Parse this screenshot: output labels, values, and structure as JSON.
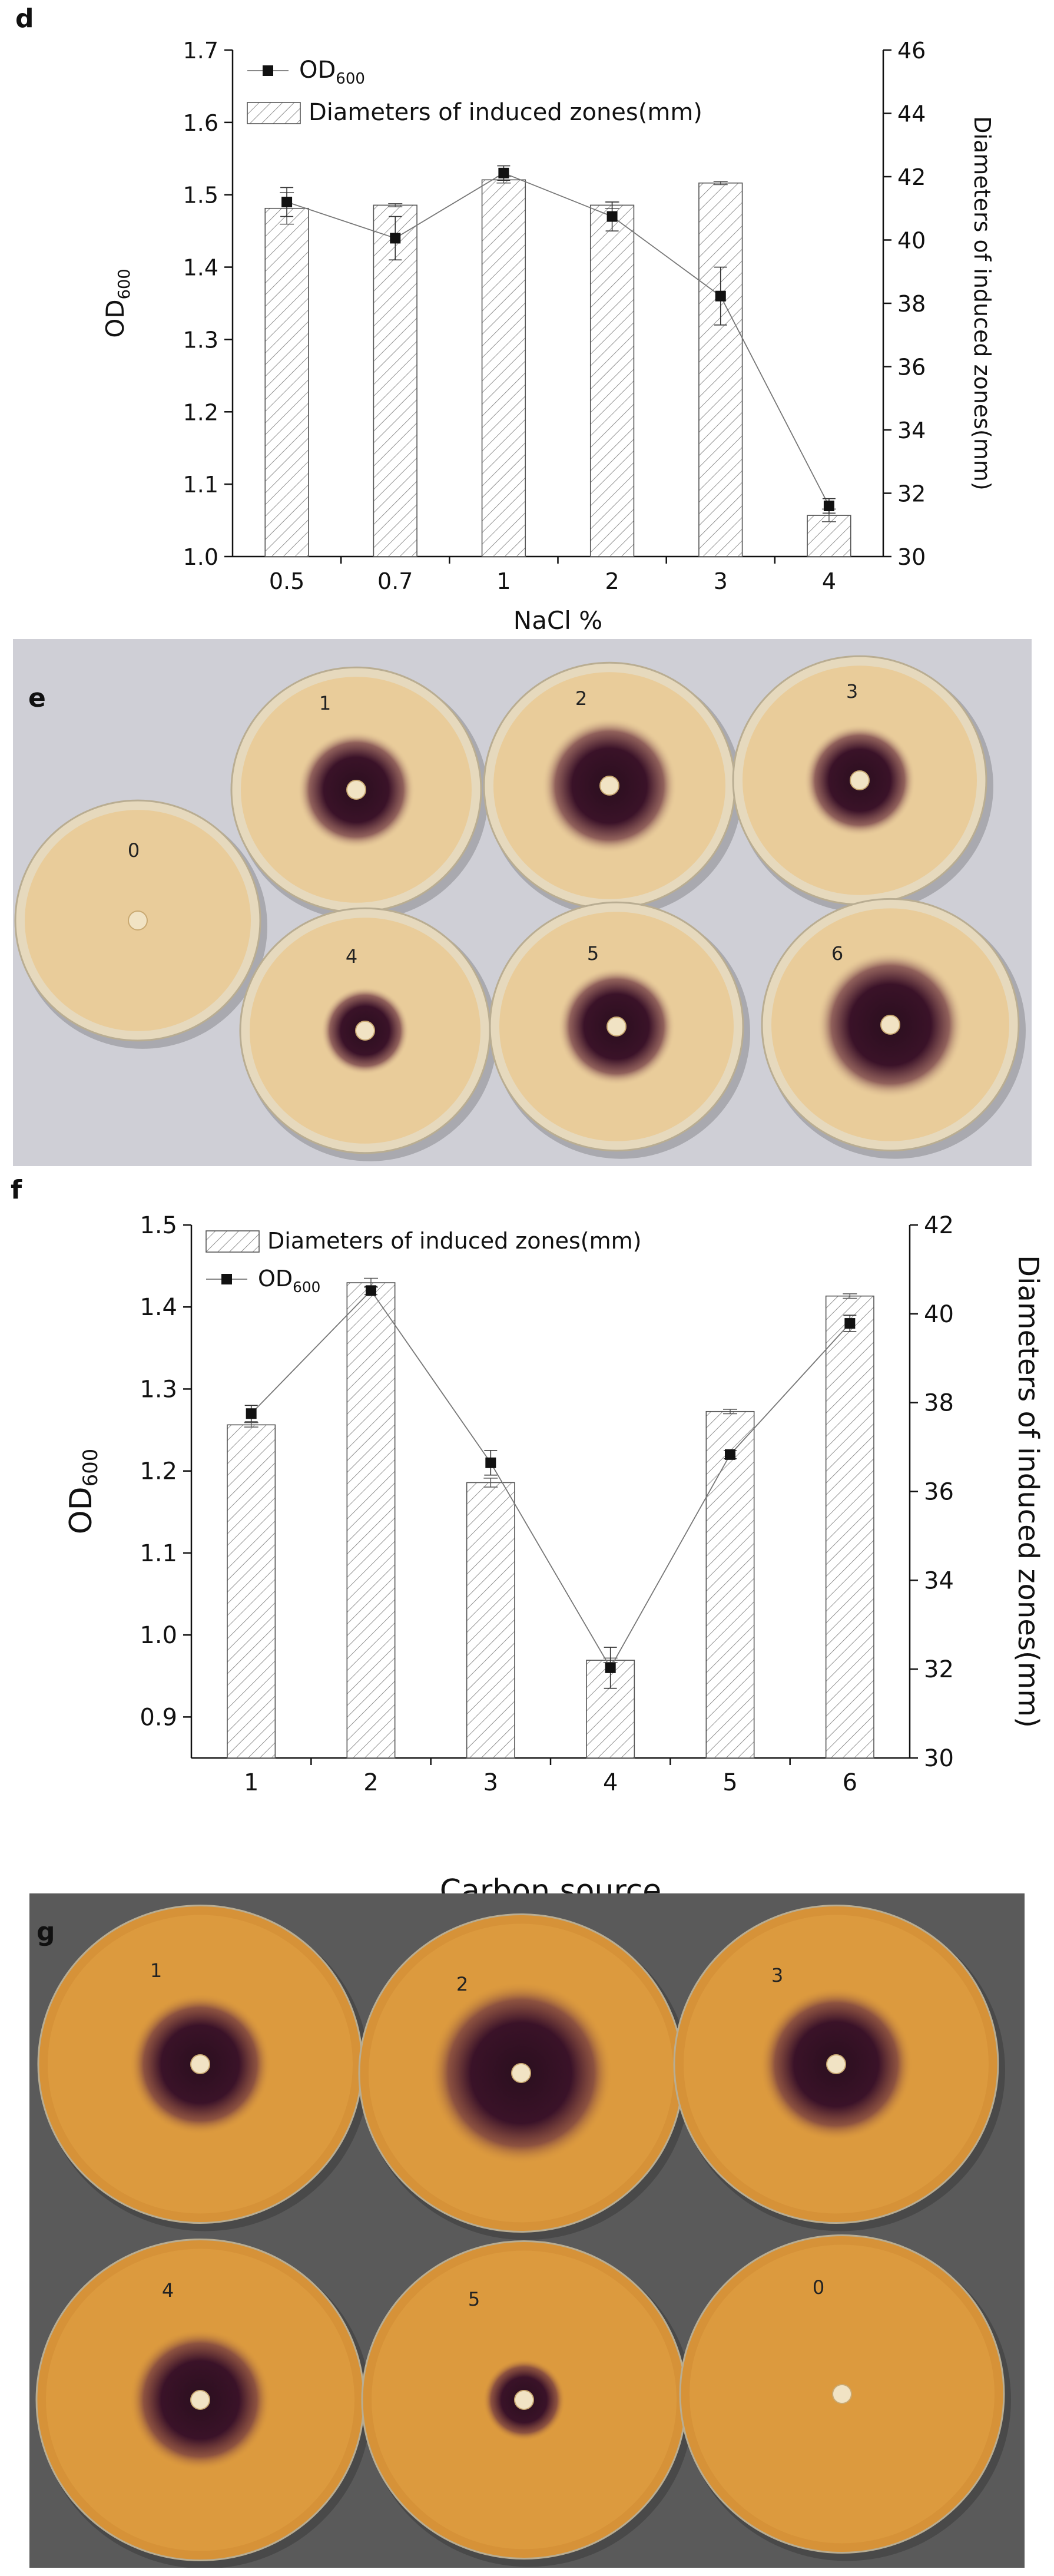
{
  "panels": {
    "d": "d",
    "e": "e",
    "f": "f",
    "g": "g"
  },
  "chart_data": [
    {
      "type": "bar",
      "panel": "d",
      "categories": [
        "0.5",
        "0.7",
        "1",
        "2",
        "3",
        "4"
      ],
      "xlabel": "NaCl %",
      "ylabel": "OD600",
      "y2label": "Diameters of induced zones(mm)",
      "ylim": [
        1.0,
        1.7
      ],
      "y2lim": [
        30,
        46
      ],
      "yticks": [
        "1.0",
        "1.1",
        "1.2",
        "1.3",
        "1.4",
        "1.5",
        "1.6",
        "1.7"
      ],
      "y2ticks": [
        "30",
        "32",
        "34",
        "36",
        "38",
        "40",
        "42",
        "44",
        "46"
      ],
      "legend": {
        "line_main": "OD",
        "line_sub": "600",
        "bar": "Diameters of induced zones(mm)",
        "placement": "top-left"
      },
      "series": [
        {
          "name": "Diameters of induced zones(mm)",
          "kind": "bar",
          "axis": "right",
          "values": [
            41.0,
            41.1,
            41.9,
            41.1,
            41.8,
            31.3
          ],
          "errors": [
            0.5,
            0.05,
            0.1,
            0.1,
            0.05,
            0.2
          ]
        },
        {
          "name": "OD600",
          "kind": "line",
          "axis": "left",
          "values": [
            1.49,
            1.44,
            1.53,
            1.47,
            1.36,
            1.07
          ],
          "errors": [
            0.02,
            0.03,
            0.01,
            0.02,
            0.04,
            0.01
          ]
        }
      ]
    },
    {
      "type": "bar",
      "panel": "f",
      "categories": [
        "1",
        "2",
        "3",
        "4",
        "5",
        "6"
      ],
      "xlabel": "Carbon source",
      "ylabel": "OD600",
      "y2label": "Diameters of induced zones(mm)",
      "ylim": [
        0.85,
        1.5
      ],
      "y2lim": [
        30,
        42
      ],
      "yticks": [
        "0.9",
        "1.0",
        "1.1",
        "1.2",
        "1.3",
        "1.4",
        "1.5"
      ],
      "y2ticks": [
        "30",
        "32",
        "34",
        "36",
        "38",
        "40",
        "42"
      ],
      "legend": {
        "bar": "Diameters of induced zones(mm)",
        "line_main": "OD",
        "line_sub": "600",
        "placement": "top-left"
      },
      "series": [
        {
          "name": "Diameters of induced zones(mm)",
          "kind": "bar",
          "axis": "right",
          "values": [
            37.5,
            40.7,
            36.2,
            32.2,
            37.8,
            40.4
          ],
          "errors": [
            0.05,
            0.1,
            0.1,
            0.05,
            0.05,
            0.05
          ]
        },
        {
          "name": "OD600",
          "kind": "line",
          "axis": "left",
          "values": [
            1.27,
            1.42,
            1.21,
            0.96,
            1.22,
            1.38
          ],
          "errors": [
            0.01,
            0.005,
            0.015,
            0.025,
            0.005,
            0.01
          ]
        }
      ]
    }
  ],
  "photos": {
    "e": {
      "plates": [
        "0",
        "1",
        "2",
        "3",
        "4",
        "5",
        "6"
      ]
    },
    "g": {
      "plates": [
        "1",
        "2",
        "3",
        "4",
        "5",
        "0"
      ]
    }
  }
}
